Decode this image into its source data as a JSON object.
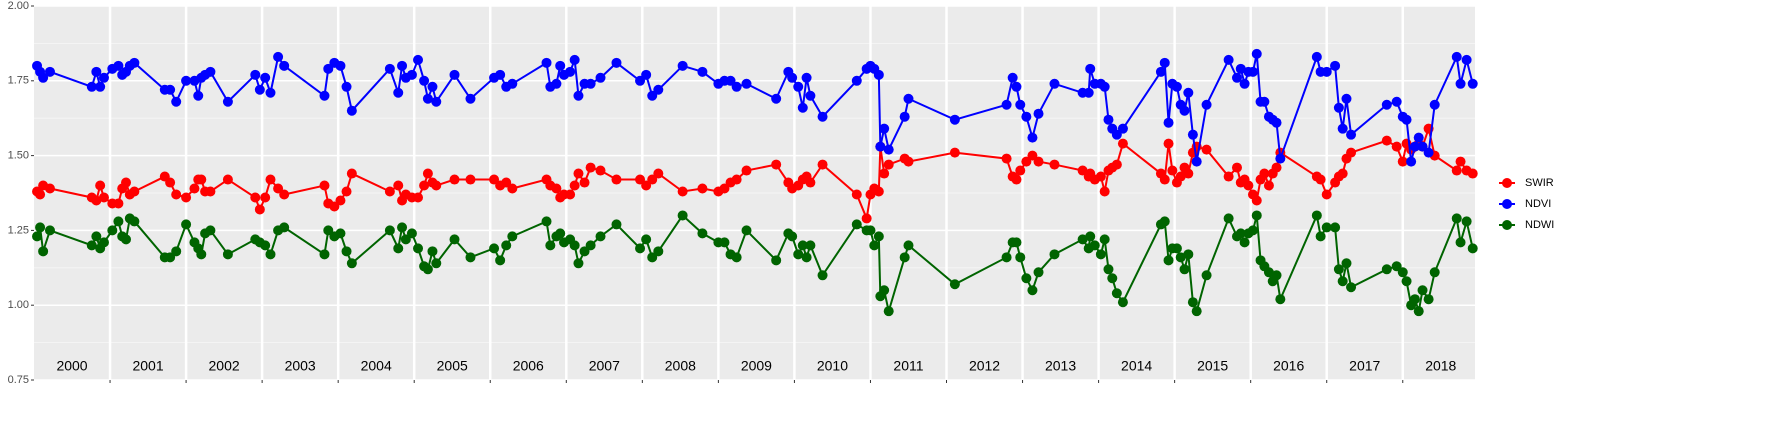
{
  "chart_data": {
    "type": "line",
    "x": [
      2000.04,
      2000.08,
      2000.12,
      2000.21,
      2000.76,
      2000.82,
      2000.87,
      2000.92,
      2001.03,
      2001.11,
      2001.16,
      2001.21,
      2001.26,
      2001.32,
      2001.72,
      2001.79,
      2001.87,
      2002.0,
      2002.11,
      2002.16,
      2002.2,
      2002.25,
      2002.32,
      2002.55,
      2002.91,
      2002.97,
      2003.04,
      2003.11,
      2003.21,
      2003.29,
      2003.82,
      2003.87,
      2003.95,
      2004.03,
      2004.11,
      2004.18,
      2004.68,
      2004.79,
      2004.84,
      2004.89,
      2004.97,
      2005.05,
      2005.13,
      2005.18,
      2005.24,
      2005.29,
      2005.53,
      2005.74,
      2006.05,
      2006.13,
      2006.21,
      2006.29,
      2006.74,
      2006.79,
      2006.87,
      2006.92,
      2006.97,
      2007.05,
      2007.11,
      2007.16,
      2007.24,
      2007.32,
      2007.45,
      2007.66,
      2007.97,
      2008.05,
      2008.13,
      2008.21,
      2008.53,
      2008.79,
      2009.0,
      2009.08,
      2009.16,
      2009.24,
      2009.37,
      2009.76,
      2009.92,
      2009.97,
      2010.05,
      2010.11,
      2010.16,
      2010.21,
      2010.37,
      2010.82,
      2010.95,
      2011.0,
      2011.05,
      2011.11,
      2011.13,
      2011.18,
      2011.24,
      2011.45,
      2011.5,
      2012.11,
      2012.79,
      2012.87,
      2012.92,
      2012.97,
      2013.05,
      2013.13,
      2013.21,
      2013.42,
      2013.79,
      2013.87,
      2013.89,
      2013.95,
      2014.03,
      2014.08,
      2014.13,
      2014.18,
      2014.24,
      2014.32,
      2014.82,
      2014.87,
      2014.92,
      2014.97,
      2015.03,
      2015.08,
      2015.13,
      2015.18,
      2015.24,
      2015.29,
      2015.42,
      2015.71,
      2015.82,
      2015.87,
      2015.92,
      2015.97,
      2016.03,
      2016.08,
      2016.13,
      2016.18,
      2016.24,
      2016.29,
      2016.34,
      2016.39,
      2016.87,
      2016.92,
      2017.0,
      2017.11,
      2017.16,
      2017.21,
      2017.26,
      2017.32,
      2017.79,
      2017.92,
      2018.0,
      2018.05,
      2018.11,
      2018.16,
      2018.21,
      2018.26,
      2018.34,
      2018.42,
      2018.71,
      2018.76,
      2018.84,
      2018.92
    ],
    "series": [
      {
        "name": "SWIR",
        "color": "#ff0000",
        "values": [
          1.38,
          1.37,
          1.4,
          1.39,
          1.36,
          1.35,
          1.4,
          1.36,
          1.34,
          1.34,
          1.39,
          1.41,
          1.37,
          1.38,
          1.43,
          1.41,
          1.37,
          1.36,
          1.39,
          1.42,
          1.42,
          1.38,
          1.38,
          1.42,
          1.36,
          1.32,
          1.36,
          1.42,
          1.39,
          1.37,
          1.4,
          1.34,
          1.33,
          1.35,
          1.38,
          1.44,
          1.38,
          1.4,
          1.35,
          1.37,
          1.36,
          1.36,
          1.4,
          1.44,
          1.41,
          1.4,
          1.42,
          1.42,
          1.42,
          1.4,
          1.41,
          1.39,
          1.42,
          1.4,
          1.39,
          1.36,
          1.37,
          1.37,
          1.4,
          1.44,
          1.41,
          1.46,
          1.45,
          1.42,
          1.42,
          1.4,
          1.42,
          1.44,
          1.38,
          1.39,
          1.38,
          1.39,
          1.41,
          1.42,
          1.45,
          1.47,
          1.41,
          1.39,
          1.4,
          1.42,
          1.43,
          1.41,
          1.47,
          1.37,
          1.29,
          1.37,
          1.39,
          1.38,
          1.53,
          1.44,
          1.47,
          1.49,
          1.48,
          1.51,
          1.49,
          1.43,
          1.42,
          1.45,
          1.48,
          1.5,
          1.48,
          1.47,
          1.45,
          1.43,
          1.44,
          1.42,
          1.43,
          1.38,
          1.45,
          1.46,
          1.47,
          1.54,
          1.44,
          1.42,
          1.54,
          1.45,
          1.41,
          1.43,
          1.46,
          1.44,
          1.51,
          1.53,
          1.52,
          1.43,
          1.46,
          1.41,
          1.42,
          1.4,
          1.37,
          1.35,
          1.42,
          1.44,
          1.4,
          1.44,
          1.46,
          1.51,
          1.43,
          1.42,
          1.37,
          1.41,
          1.43,
          1.44,
          1.49,
          1.51,
          1.55,
          1.53,
          1.48,
          1.54,
          1.52,
          1.53,
          1.54,
          1.53,
          1.59,
          1.5,
          1.45,
          1.48,
          1.45,
          1.44
        ]
      },
      {
        "name": "NDVI",
        "color": "#0000ff",
        "values": [
          1.8,
          1.78,
          1.76,
          1.78,
          1.73,
          1.78,
          1.73,
          1.76,
          1.79,
          1.8,
          1.77,
          1.78,
          1.8,
          1.81,
          1.72,
          1.72,
          1.68,
          1.75,
          1.75,
          1.7,
          1.76,
          1.77,
          1.78,
          1.68,
          1.77,
          1.72,
          1.76,
          1.71,
          1.83,
          1.8,
          1.7,
          1.79,
          1.81,
          1.8,
          1.73,
          1.65,
          1.79,
          1.71,
          1.8,
          1.76,
          1.77,
          1.82,
          1.75,
          1.69,
          1.73,
          1.68,
          1.77,
          1.69,
          1.76,
          1.77,
          1.73,
          1.74,
          1.81,
          1.73,
          1.74,
          1.8,
          1.77,
          1.78,
          1.82,
          1.7,
          1.74,
          1.74,
          1.76,
          1.81,
          1.75,
          1.77,
          1.7,
          1.72,
          1.8,
          1.78,
          1.74,
          1.75,
          1.75,
          1.73,
          1.74,
          1.69,
          1.78,
          1.76,
          1.73,
          1.66,
          1.76,
          1.7,
          1.63,
          1.75,
          1.79,
          1.8,
          1.79,
          1.77,
          1.53,
          1.59,
          1.52,
          1.63,
          1.69,
          1.62,
          1.67,
          1.76,
          1.73,
          1.67,
          1.63,
          1.56,
          1.64,
          1.74,
          1.71,
          1.71,
          1.79,
          1.74,
          1.74,
          1.73,
          1.62,
          1.59,
          1.57,
          1.59,
          1.78,
          1.81,
          1.61,
          1.74,
          1.73,
          1.67,
          1.65,
          1.71,
          1.57,
          1.48,
          1.67,
          1.82,
          1.76,
          1.79,
          1.74,
          1.78,
          1.78,
          1.84,
          1.68,
          1.68,
          1.63,
          1.62,
          1.61,
          1.49,
          1.83,
          1.78,
          1.78,
          1.8,
          1.66,
          1.59,
          1.69,
          1.57,
          1.67,
          1.68,
          1.63,
          1.62,
          1.48,
          1.53,
          1.56,
          1.53,
          1.51,
          1.67,
          1.83,
          1.74,
          1.82,
          1.74
        ]
      },
      {
        "name": "NDWI",
        "color": "#006400",
        "values": [
          1.23,
          1.26,
          1.18,
          1.25,
          1.2,
          1.23,
          1.19,
          1.21,
          1.25,
          1.28,
          1.23,
          1.22,
          1.29,
          1.28,
          1.16,
          1.16,
          1.18,
          1.27,
          1.21,
          1.19,
          1.17,
          1.24,
          1.25,
          1.17,
          1.22,
          1.21,
          1.2,
          1.17,
          1.25,
          1.26,
          1.17,
          1.25,
          1.23,
          1.24,
          1.18,
          1.14,
          1.25,
          1.19,
          1.26,
          1.22,
          1.24,
          1.19,
          1.13,
          1.12,
          1.18,
          1.14,
          1.22,
          1.16,
          1.19,
          1.15,
          1.2,
          1.23,
          1.28,
          1.2,
          1.23,
          1.24,
          1.21,
          1.22,
          1.2,
          1.14,
          1.18,
          1.2,
          1.23,
          1.27,
          1.19,
          1.22,
          1.16,
          1.18,
          1.3,
          1.24,
          1.21,
          1.21,
          1.17,
          1.16,
          1.25,
          1.15,
          1.24,
          1.23,
          1.17,
          1.2,
          1.16,
          1.2,
          1.1,
          1.27,
          1.25,
          1.25,
          1.2,
          1.23,
          1.03,
          1.05,
          0.98,
          1.16,
          1.2,
          1.07,
          1.16,
          1.21,
          1.21,
          1.16,
          1.09,
          1.05,
          1.11,
          1.17,
          1.22,
          1.19,
          1.23,
          1.2,
          1.17,
          1.22,
          1.12,
          1.09,
          1.04,
          1.01,
          1.27,
          1.28,
          1.15,
          1.19,
          1.19,
          1.16,
          1.12,
          1.17,
          1.01,
          0.98,
          1.1,
          1.29,
          1.23,
          1.24,
          1.21,
          1.24,
          1.25,
          1.3,
          1.15,
          1.13,
          1.11,
          1.08,
          1.1,
          1.02,
          1.3,
          1.23,
          1.26,
          1.26,
          1.12,
          1.08,
          1.14,
          1.06,
          1.12,
          1.13,
          1.11,
          1.08,
          1.0,
          1.02,
          0.98,
          1.05,
          1.02,
          1.11,
          1.29,
          1.21,
          1.28,
          1.19
        ]
      }
    ],
    "xlim": [
      2000,
      2018.95
    ],
    "xticks": [
      2001,
      2002,
      2003,
      2004,
      2005,
      2006,
      2007,
      2008,
      2009,
      2010,
      2011,
      2012,
      2013,
      2014,
      2015,
      2016,
      2017,
      2018
    ],
    "ylim": [
      0.75,
      2.0
    ],
    "yticks": [
      {
        "value": 0.75,
        "label": "0.75"
      },
      {
        "value": 1.0,
        "label": "1.00"
      },
      {
        "value": 1.25,
        "label": "1.25"
      },
      {
        "value": 1.5,
        "label": "1.50"
      },
      {
        "value": 1.75,
        "label": "1.75"
      },
      {
        "value": 2.0,
        "label": "2.00"
      }
    ],
    "annotations": [
      {
        "text": "2000",
        "x": 2000.5
      },
      {
        "text": "2001",
        "x": 2001.5
      },
      {
        "text": "2002",
        "x": 2002.5
      },
      {
        "text": "2003",
        "x": 2003.5
      },
      {
        "text": "2004",
        "x": 2004.5
      },
      {
        "text": "2005",
        "x": 2005.5
      },
      {
        "text": "2006",
        "x": 2006.5
      },
      {
        "text": "2007",
        "x": 2007.5
      },
      {
        "text": "2008",
        "x": 2008.5
      },
      {
        "text": "2009",
        "x": 2009.5
      },
      {
        "text": "2010",
        "x": 2010.5
      },
      {
        "text": "2011",
        "x": 2011.5
      },
      {
        "text": "2012",
        "x": 2012.5
      },
      {
        "text": "2013",
        "x": 2013.5
      },
      {
        "text": "2014",
        "x": 2014.5
      },
      {
        "text": "2015",
        "x": 2015.5
      },
      {
        "text": "2016",
        "x": 2016.5
      },
      {
        "text": "2017",
        "x": 2017.5
      },
      {
        "text": "2018",
        "x": 2018.5
      }
    ],
    "grid": true,
    "legend": "right"
  }
}
